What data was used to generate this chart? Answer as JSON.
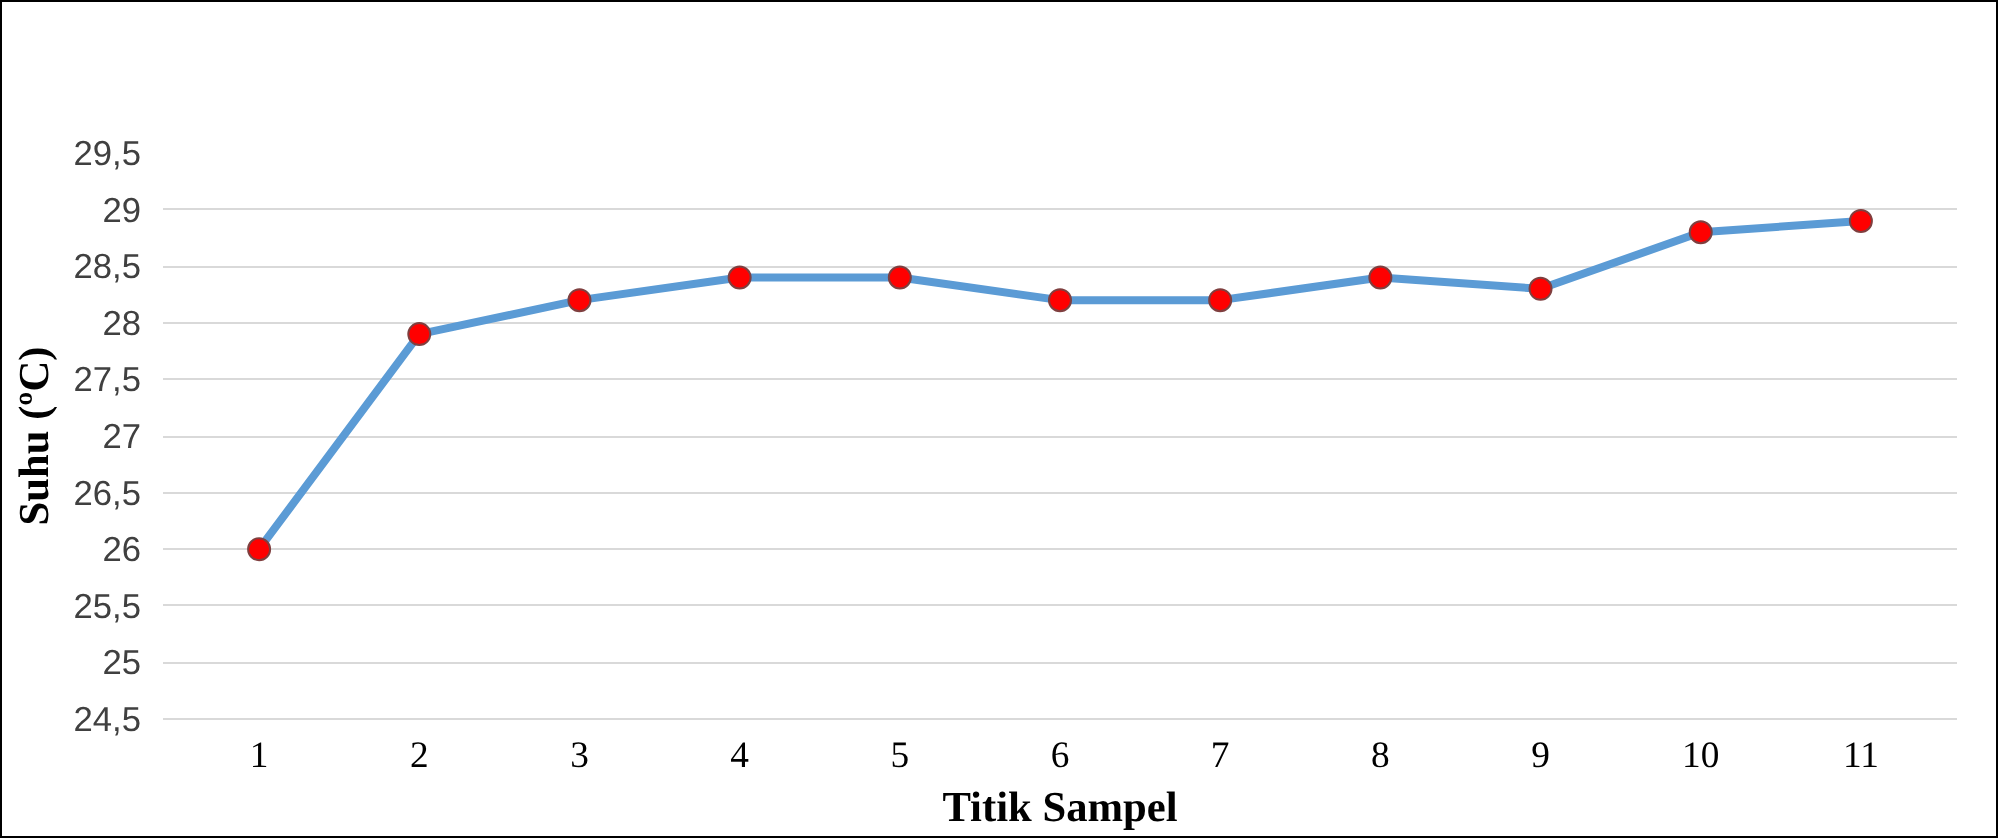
{
  "chart_data": {
    "type": "line",
    "xlabel": "Titik Sampel",
    "ylabel": "Suhu (ºC)",
    "categories": [
      "1",
      "2",
      "3",
      "4",
      "5",
      "6",
      "7",
      "8",
      "9",
      "10",
      "11"
    ],
    "series": [
      {
        "color": "#5b9bd5",
        "values": [
          26,
          27.9,
          28.2,
          28.4,
          28.4,
          28.2,
          28.2,
          28.4,
          28.3,
          28.8,
          28.9
        ]
      }
    ],
    "marker": "circle",
    "line_style": "solid",
    "grid": "y",
    "ylim": [
      24.5,
      29.5
    ],
    "yticks": [
      {
        "value": 24.5,
        "label": "24,5"
      },
      25,
      {
        "value": 25.5,
        "label": "25,5"
      },
      26,
      {
        "value": 26.5,
        "label": "26,5"
      },
      27,
      {
        "value": 27.5,
        "label": "27,5"
      },
      28,
      {
        "value": 28.5,
        "label": "28,5"
      },
      29,
      {
        "value": 29.5,
        "label": "29,5"
      }
    ]
  }
}
